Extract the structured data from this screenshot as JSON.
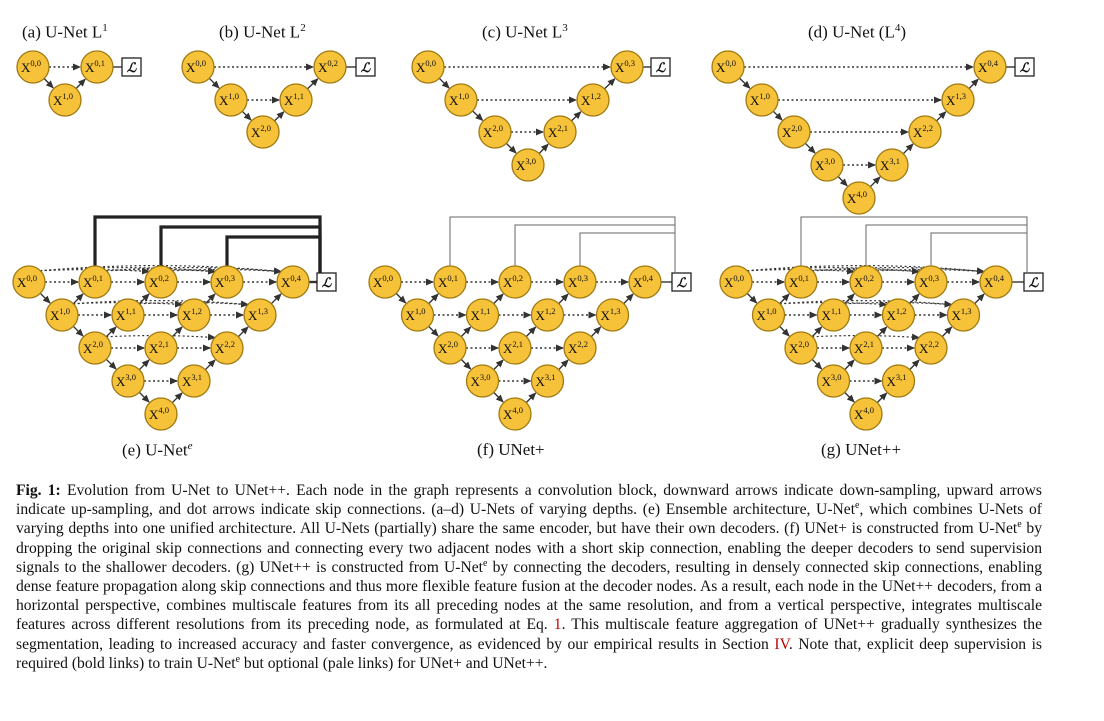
{
  "panels": {
    "a": {
      "title": "(a) U-Net L",
      "sup": "1"
    },
    "b": {
      "title": "(b) U-Net L",
      "sup": "2"
    },
    "c": {
      "title": "(c) U-Net L",
      "sup": "3"
    },
    "d": {
      "title": "(d) U-Net (L",
      "sup": "4",
      "close": ")"
    },
    "e": {
      "title": "(e) U-Net",
      "sup": "e"
    },
    "f": {
      "title": "(f) UNet+"
    },
    "g": {
      "title": "(g) UNet++"
    }
  },
  "loss_symbol": "ℒ",
  "node_letter": "X",
  "caption": {
    "label": "Fig. 1:",
    "p1": " Evolution from U-Net to UNet++. Each node in the graph represents a convolution block, downward arrows indicate down-sampling, upward arrows indicate up-sampling, and dot arrows indicate skip connections. (a–d) U-Nets of varying depths. (e) Ensemble architecture, U-Net",
    "sup1": "e",
    "p2": ", which combines U-Nets of varying depths into one unified architecture. All U-Nets (partially) share the same encoder, but have their own decoders. (f) UNet+ is constructed from U-Net",
    "sup2": "e",
    "p3": " by dropping the original skip connections and connecting every two adjacent nodes with a short skip connection, enabling the deeper decoders to send supervision signals to the shallower decoders. (g) UNet++ is constructed from U-Net",
    "sup3": "e",
    "p4": " by connecting the decoders, resulting in densely connected skip connections, enabling dense feature propagation along skip connections and thus more flexible feature fusion at the decoder nodes. As a result, each node in the UNet++ decoders, from a horizontal perspective, combines multiscale features from its all preceding nodes at the same resolution, and from a vertical perspective, integrates multiscale features across different resolutions from its preceding node, as formulated at Eq. ",
    "eq": "1",
    "p5": ". This multiscale feature aggregation of UNet++ gradually synthesizes the segmentation, leading to increased accuracy and faster convergence, as evidenced by our empirical results in Section ",
    "sec": "IV",
    "p6": ". Note that, explicit deep supervision is required (bold links) to train U-Net",
    "sup4": "e",
    "p7": " but optional (pale links) for UNet+ and UNet++."
  }
}
